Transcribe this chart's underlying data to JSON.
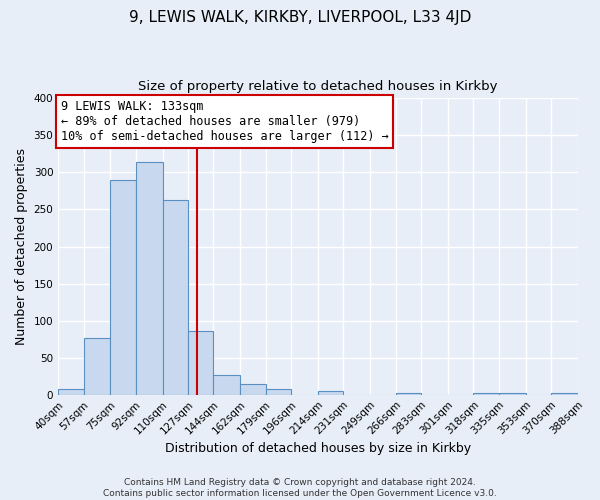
{
  "title": "9, LEWIS WALK, KIRKBY, LIVERPOOL, L33 4JD",
  "subtitle": "Size of property relative to detached houses in Kirkby",
  "xlabel": "Distribution of detached houses by size in Kirkby",
  "ylabel": "Number of detached properties",
  "footer_line1": "Contains HM Land Registry data © Crown copyright and database right 2024.",
  "footer_line2": "Contains public sector information licensed under the Open Government Licence v3.0.",
  "bin_edges": [
    40,
    57,
    75,
    92,
    110,
    127,
    144,
    162,
    179,
    196,
    214,
    231,
    249,
    266,
    283,
    301,
    318,
    335,
    353,
    370,
    388
  ],
  "bin_labels": [
    "40sqm",
    "57sqm",
    "75sqm",
    "92sqm",
    "110sqm",
    "127sqm",
    "144sqm",
    "162sqm",
    "179sqm",
    "196sqm",
    "214sqm",
    "231sqm",
    "249sqm",
    "266sqm",
    "283sqm",
    "301sqm",
    "318sqm",
    "335sqm",
    "353sqm",
    "370sqm",
    "388sqm"
  ],
  "counts": [
    8,
    77,
    290,
    314,
    263,
    86,
    26,
    15,
    8,
    0,
    5,
    0,
    0,
    2,
    0,
    0,
    3,
    3,
    0,
    3
  ],
  "bar_color": "#c8d9ef",
  "bar_edge_color": "#5a8fc2",
  "property_size": 133,
  "vline_color": "#cc0000",
  "annotation_line1": "9 LEWIS WALK: 133sqm",
  "annotation_line2": "← 89% of detached houses are smaller (979)",
  "annotation_line3": "10% of semi-detached houses are larger (112) →",
  "annotation_box_color": "#ffffff",
  "annotation_box_edge_color": "#cc0000",
  "ylim": [
    0,
    400
  ],
  "yticks": [
    0,
    50,
    100,
    150,
    200,
    250,
    300,
    350,
    400
  ],
  "background_color": "#e8eef8",
  "plot_bg_color": "#e8eef8",
  "grid_color": "#ffffff",
  "title_fontsize": 11,
  "subtitle_fontsize": 9.5,
  "axis_label_fontsize": 9,
  "tick_label_fontsize": 7.5,
  "annotation_fontsize": 8.5,
  "footer_fontsize": 6.5
}
